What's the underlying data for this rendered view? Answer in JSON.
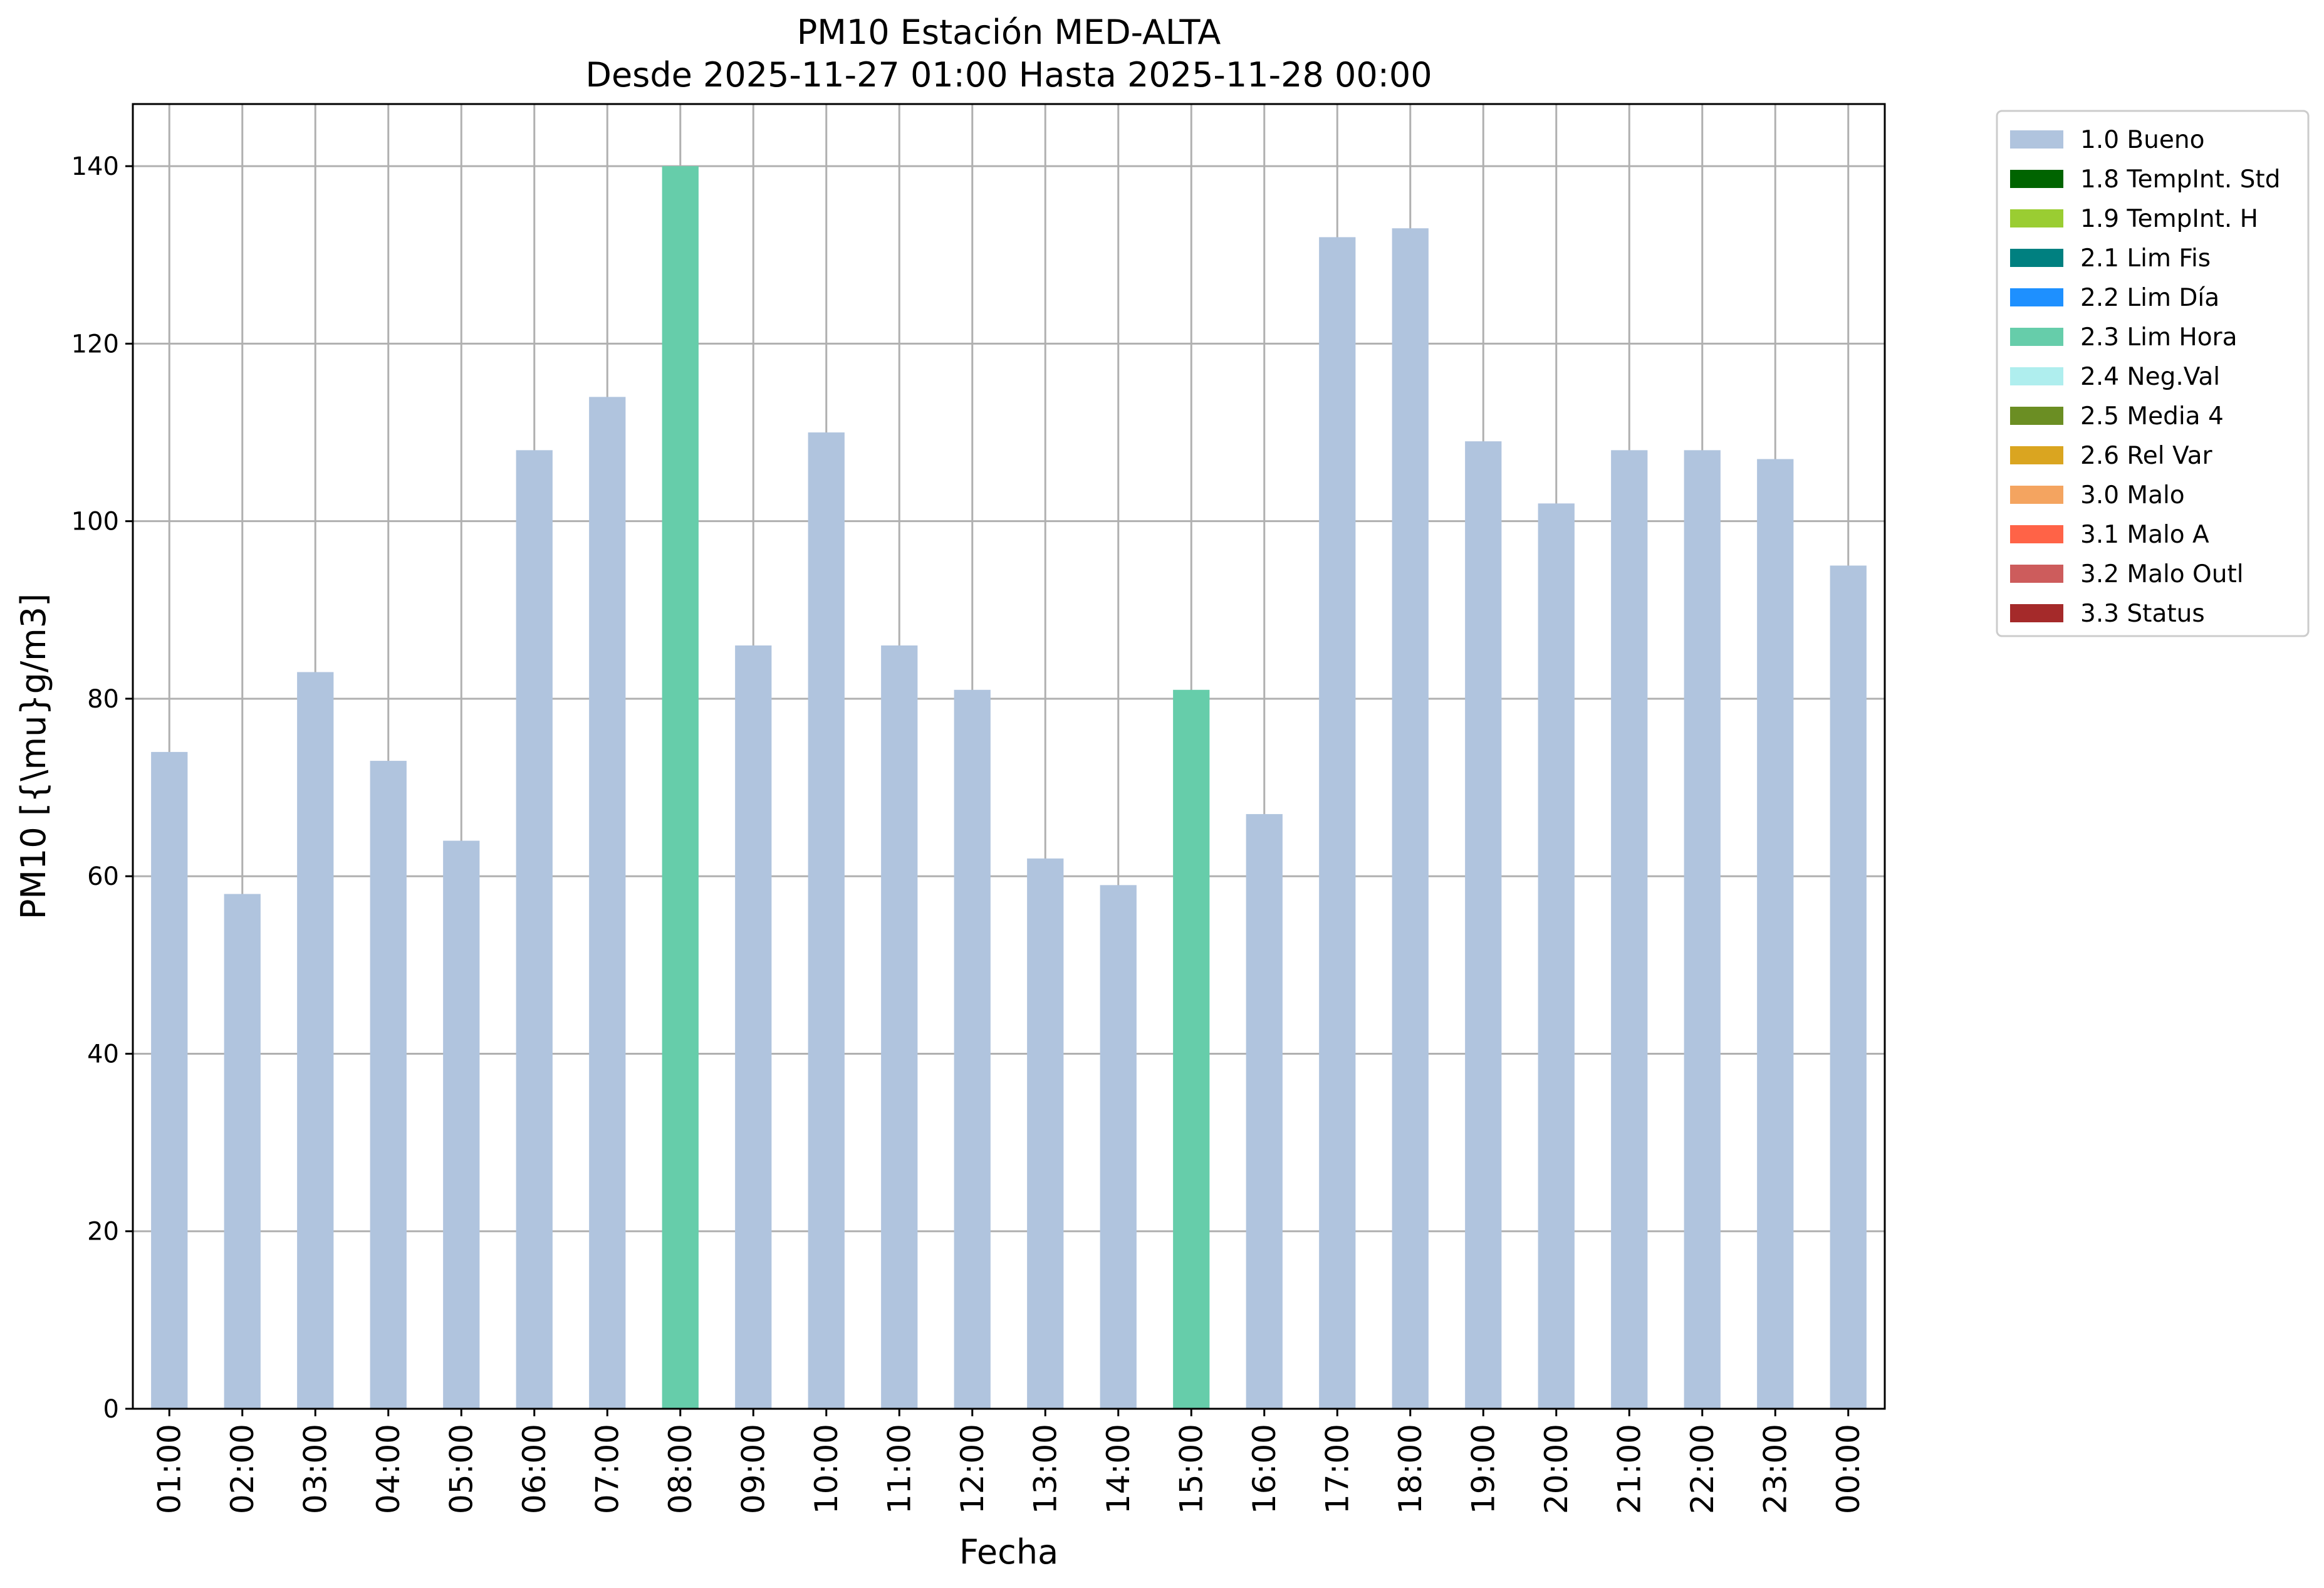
{
  "chart_data": {
    "type": "bar",
    "title": "PM10 Estación MED-ALTA",
    "subtitle": "Desde 2025-11-27 01:00 Hasta 2025-11-28 00:00",
    "xlabel": "Fecha",
    "ylabel": "PM10 [{\\mu}g/m3]",
    "ylim": [
      0,
      147
    ],
    "yticks": [
      0,
      20,
      40,
      60,
      80,
      100,
      120,
      140
    ],
    "grid": true,
    "legend_position": "outside-right",
    "categories": [
      "01:00",
      "02:00",
      "03:00",
      "04:00",
      "05:00",
      "06:00",
      "07:00",
      "08:00",
      "09:00",
      "10:00",
      "11:00",
      "12:00",
      "13:00",
      "14:00",
      "15:00",
      "16:00",
      "17:00",
      "18:00",
      "19:00",
      "20:00",
      "21:00",
      "22:00",
      "23:00",
      "00:00"
    ],
    "values": [
      74,
      58,
      83,
      73,
      64,
      108,
      114,
      140,
      86,
      110,
      86,
      81,
      62,
      59,
      81,
      67,
      132,
      133,
      109,
      102,
      108,
      108,
      107,
      95
    ],
    "flags": [
      "1.0 Bueno",
      "1.0 Bueno",
      "1.0 Bueno",
      "1.0 Bueno",
      "1.0 Bueno",
      "1.0 Bueno",
      "1.0 Bueno",
      "2.3 Lim Hora",
      "1.0 Bueno",
      "1.0 Bueno",
      "1.0 Bueno",
      "1.0 Bueno",
      "1.0 Bueno",
      "1.0 Bueno",
      "2.3 Lim Hora",
      "1.0 Bueno",
      "1.0 Bueno",
      "1.0 Bueno",
      "1.0 Bueno",
      "1.0 Bueno",
      "1.0 Bueno",
      "1.0 Bueno",
      "1.0 Bueno",
      "1.0 Bueno"
    ],
    "legend": [
      {
        "label": "1.0 Bueno",
        "color": "#b0c4de"
      },
      {
        "label": "1.8 TempInt. Std",
        "color": "#006400"
      },
      {
        "label": "1.9 TempInt. H",
        "color": "#9acd32"
      },
      {
        "label": "2.1 Lim Fis",
        "color": "#008080"
      },
      {
        "label": "2.2 Lim Día",
        "color": "#1e90ff"
      },
      {
        "label": "2.3 Lim Hora",
        "color": "#66cdaa"
      },
      {
        "label": "2.4 Neg.Val",
        "color": "#afeeee"
      },
      {
        "label": "2.5 Media 4",
        "color": "#6b8e23"
      },
      {
        "label": "2.6 Rel Var",
        "color": "#daa520"
      },
      {
        "label": "3.0 Malo",
        "color": "#f4a460"
      },
      {
        "label": "3.1 Malo A",
        "color": "#ff6347"
      },
      {
        "label": "3.2 Malo Outl",
        "color": "#cd5c5c"
      },
      {
        "label": "3.3 Status",
        "color": "#a52a2a"
      }
    ],
    "colors": {
      "grid": "#b0b0b0",
      "axes": "#000000"
    }
  }
}
